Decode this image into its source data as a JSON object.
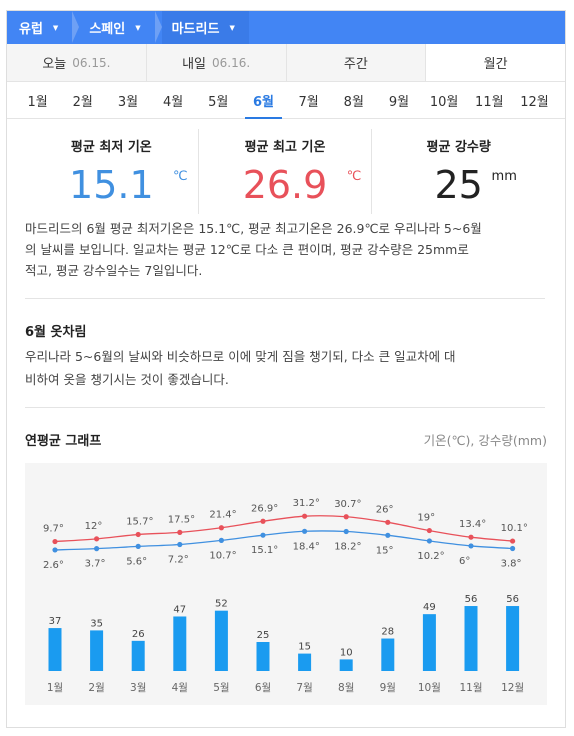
{
  "breadcrumb": [
    {
      "label": "유럽"
    },
    {
      "label": "스페인"
    },
    {
      "label": "마드리드"
    }
  ],
  "period_tabs": [
    {
      "label": "오늘",
      "date": "06.15."
    },
    {
      "label": "내일",
      "date": "06.16."
    },
    {
      "label": "주간",
      "date": ""
    },
    {
      "label": "월간",
      "date": "",
      "active": true
    }
  ],
  "months": [
    "1월",
    "2월",
    "3월",
    "4월",
    "5월",
    "6월",
    "7월",
    "8월",
    "9월",
    "10월",
    "11월",
    "12월"
  ],
  "selected_month_index": 5,
  "stats": {
    "min": {
      "label": "평균 최저 기온",
      "value": "15.1",
      "unit": "℃"
    },
    "max": {
      "label": "평균 최고 기온",
      "value": "26.9",
      "unit": "℃"
    },
    "precip": {
      "label": "평균 강수량",
      "value": "25",
      "unit": "mm"
    }
  },
  "summary_line1": "마드리드의 6월 평균 최저기온은 15.1℃, 평균 최고기온은 26.9℃로 우리나라 5~6월",
  "summary_line2": "의 날씨를 보입니다. 일교차는 평균 12℃로 다소 큰 편이며, 평균 강수량은 25mm로",
  "summary_line3": "적고, 평균 강수일수는 7일입니다.",
  "clothing": {
    "title": "6월 옷차림",
    "line1": "우리나라 5~6월의 날씨와 비슷하므로 이에 맞게 짐을 챙기되, 다소 큰 일교차에 대",
    "line2": "비하여 옷을 챙기시는 것이 좋겠습니다."
  },
  "graph": {
    "title": "연평균 그래프",
    "unit_note": "기온(℃), 강수량(mm)"
  },
  "colors": {
    "header": "#4285f4",
    "max_line": "#e8515a",
    "min_line": "#4090e0",
    "bar": "#1a9bf0"
  },
  "chart_data": {
    "type": "line",
    "categories": [
      "1월",
      "2월",
      "3월",
      "4월",
      "5월",
      "6월",
      "7월",
      "8월",
      "9월",
      "10월",
      "11월",
      "12월"
    ],
    "series": [
      {
        "name": "평균 최고 기온",
        "values": [
          9.7,
          12,
          15.7,
          17.5,
          21.4,
          26.9,
          31.2,
          30.7,
          26,
          19,
          13.4,
          10.1
        ],
        "labels": [
          "9.7°",
          "12°",
          "15.7°",
          "17.5°",
          "21.4°",
          "26.9°",
          "31.2°",
          "30.7°",
          "26°",
          "19°",
          "13.4°",
          "10.1°"
        ]
      },
      {
        "name": "평균 최저 기온",
        "values": [
          2.6,
          3.7,
          5.6,
          7.2,
          10.7,
          15.1,
          18.4,
          18.2,
          15,
          10.2,
          6,
          3.8
        ],
        "labels": [
          "2.6°",
          "3.7°",
          "5.6°",
          "7.2°",
          "10.7°",
          "15.1°",
          "18.4°",
          "18.2°",
          "15°",
          "10.2°",
          "6°",
          "3.8°"
        ]
      }
    ],
    "bars": {
      "name": "평균 강수량",
      "values": [
        37,
        35,
        26,
        47,
        52,
        25,
        15,
        10,
        28,
        49,
        56,
        56
      ],
      "labels": [
        "37",
        "35",
        "26",
        "47",
        "52",
        "25",
        "15",
        "10",
        "28",
        "49",
        "56",
        "56"
      ]
    }
  }
}
